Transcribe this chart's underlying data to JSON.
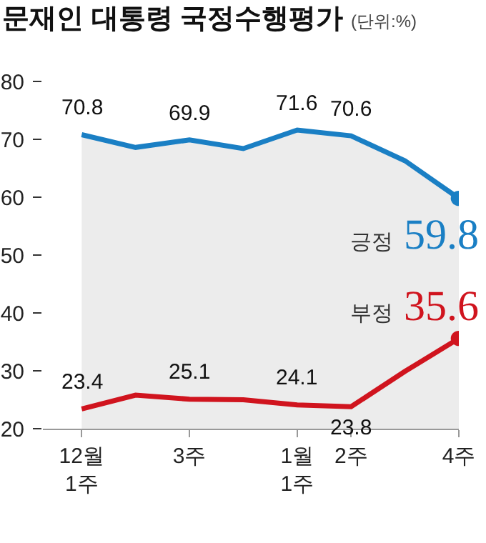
{
  "chart_data": {
    "type": "area",
    "title": "문재인 대통령 국정수행평가",
    "subtitle": "(단위:%)",
    "categories": [
      "12월\n1주",
      null,
      "3주",
      null,
      "1월\n1주",
      "2주",
      null,
      "4주"
    ],
    "series": [
      {
        "name": "긍정",
        "color": "#1a7fc4",
        "values": [
          70.8,
          68.6,
          69.9,
          68.4,
          71.6,
          70.6,
          66.3,
          59.8
        ],
        "value_labels": [
          "70.8",
          null,
          "69.9",
          null,
          "71.6",
          "70.6",
          null,
          "59.8"
        ]
      },
      {
        "name": "부정",
        "type": "line",
        "color": "#d0141e",
        "values": [
          23.4,
          25.8,
          25.1,
          25.0,
          24.1,
          23.8,
          29.9,
          35.6
        ],
        "value_labels": [
          "23.4",
          null,
          "25.1",
          null,
          "24.1",
          "23.8",
          null,
          "35.6"
        ]
      }
    ],
    "ylim": [
      20,
      80
    ],
    "yticks": [
      20,
      30,
      40,
      50,
      60,
      70,
      80
    ],
    "grid": false,
    "legend": false,
    "marker": "none",
    "line_style": "solid"
  }
}
